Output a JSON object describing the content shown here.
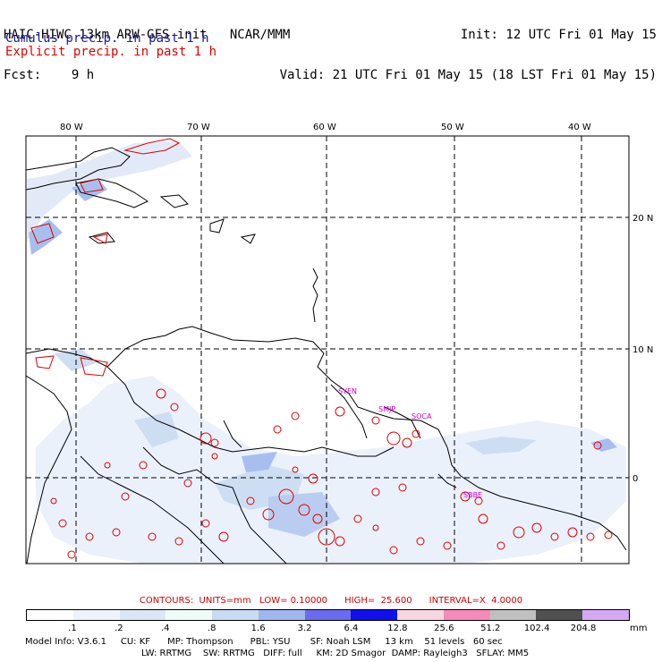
{
  "header": {
    "title": "HAIC-HIWC 13km ARW-GFS init   NCAR/MMM",
    "fcst": "Fcst:    9 h",
    "init": "Init: 12 UTC Fri 01 May 15",
    "valid": "Valid: 21 UTC Fri 01 May 15 (18 LST Fri 01 May 15)"
  },
  "legend": {
    "cumulus": "Cumulus precip. in past 1 h",
    "cumulus_color": "#1a1a9e",
    "explicit": "Explicit precip. in past 1 h",
    "explicit_color": "#e00000"
  },
  "map": {
    "lon_labels": [
      "80 W",
      "70 W",
      "60 W",
      "50 W",
      "40 W"
    ],
    "lat_labels": [
      "20 N",
      "10 N",
      "0"
    ],
    "station_labels": [
      "SYEN",
      "SMJP",
      "SOCA",
      "SBBE"
    ],
    "station_color": "#cc00cc",
    "coast_color": "#000000",
    "grid_color": "#000000"
  },
  "contours_text": "CONTOURS:  UNITS=mm   LOW= 0.10000      HIGH=  25.600      INTERVAL=X  4.0000",
  "colorbar": {
    "unit": "mm",
    "labels": [
      ".1",
      ".2",
      ".4",
      ".8",
      "1.6",
      "3.2",
      "6.4",
      "12.8",
      "25.6",
      "51.2",
      "102.4",
      "204.8"
    ],
    "colors": [
      "#ffffff",
      "#eef3fb",
      "#dbe7f6",
      "#eefcf7",
      "#c8dbf2",
      "#9fb7ee",
      "#6b6bf0",
      "#1010ee",
      "#f6d6e0",
      "#f58bb6",
      "#c0c0c0",
      "#505050",
      "#d4a8f4"
    ]
  },
  "model_info": {
    "line1": "Model Info: V3.6.1     CU: KF      MP: Thompson      PBL: YSU       SF: Noah LSM     13 km    51 levels   60 sec",
    "line2": "LW: RRTMG    SW: RRTMG   DIFF: full     KM: 2D Smagor  DAMP: Rayleigh3   SFLAY: MM5"
  }
}
